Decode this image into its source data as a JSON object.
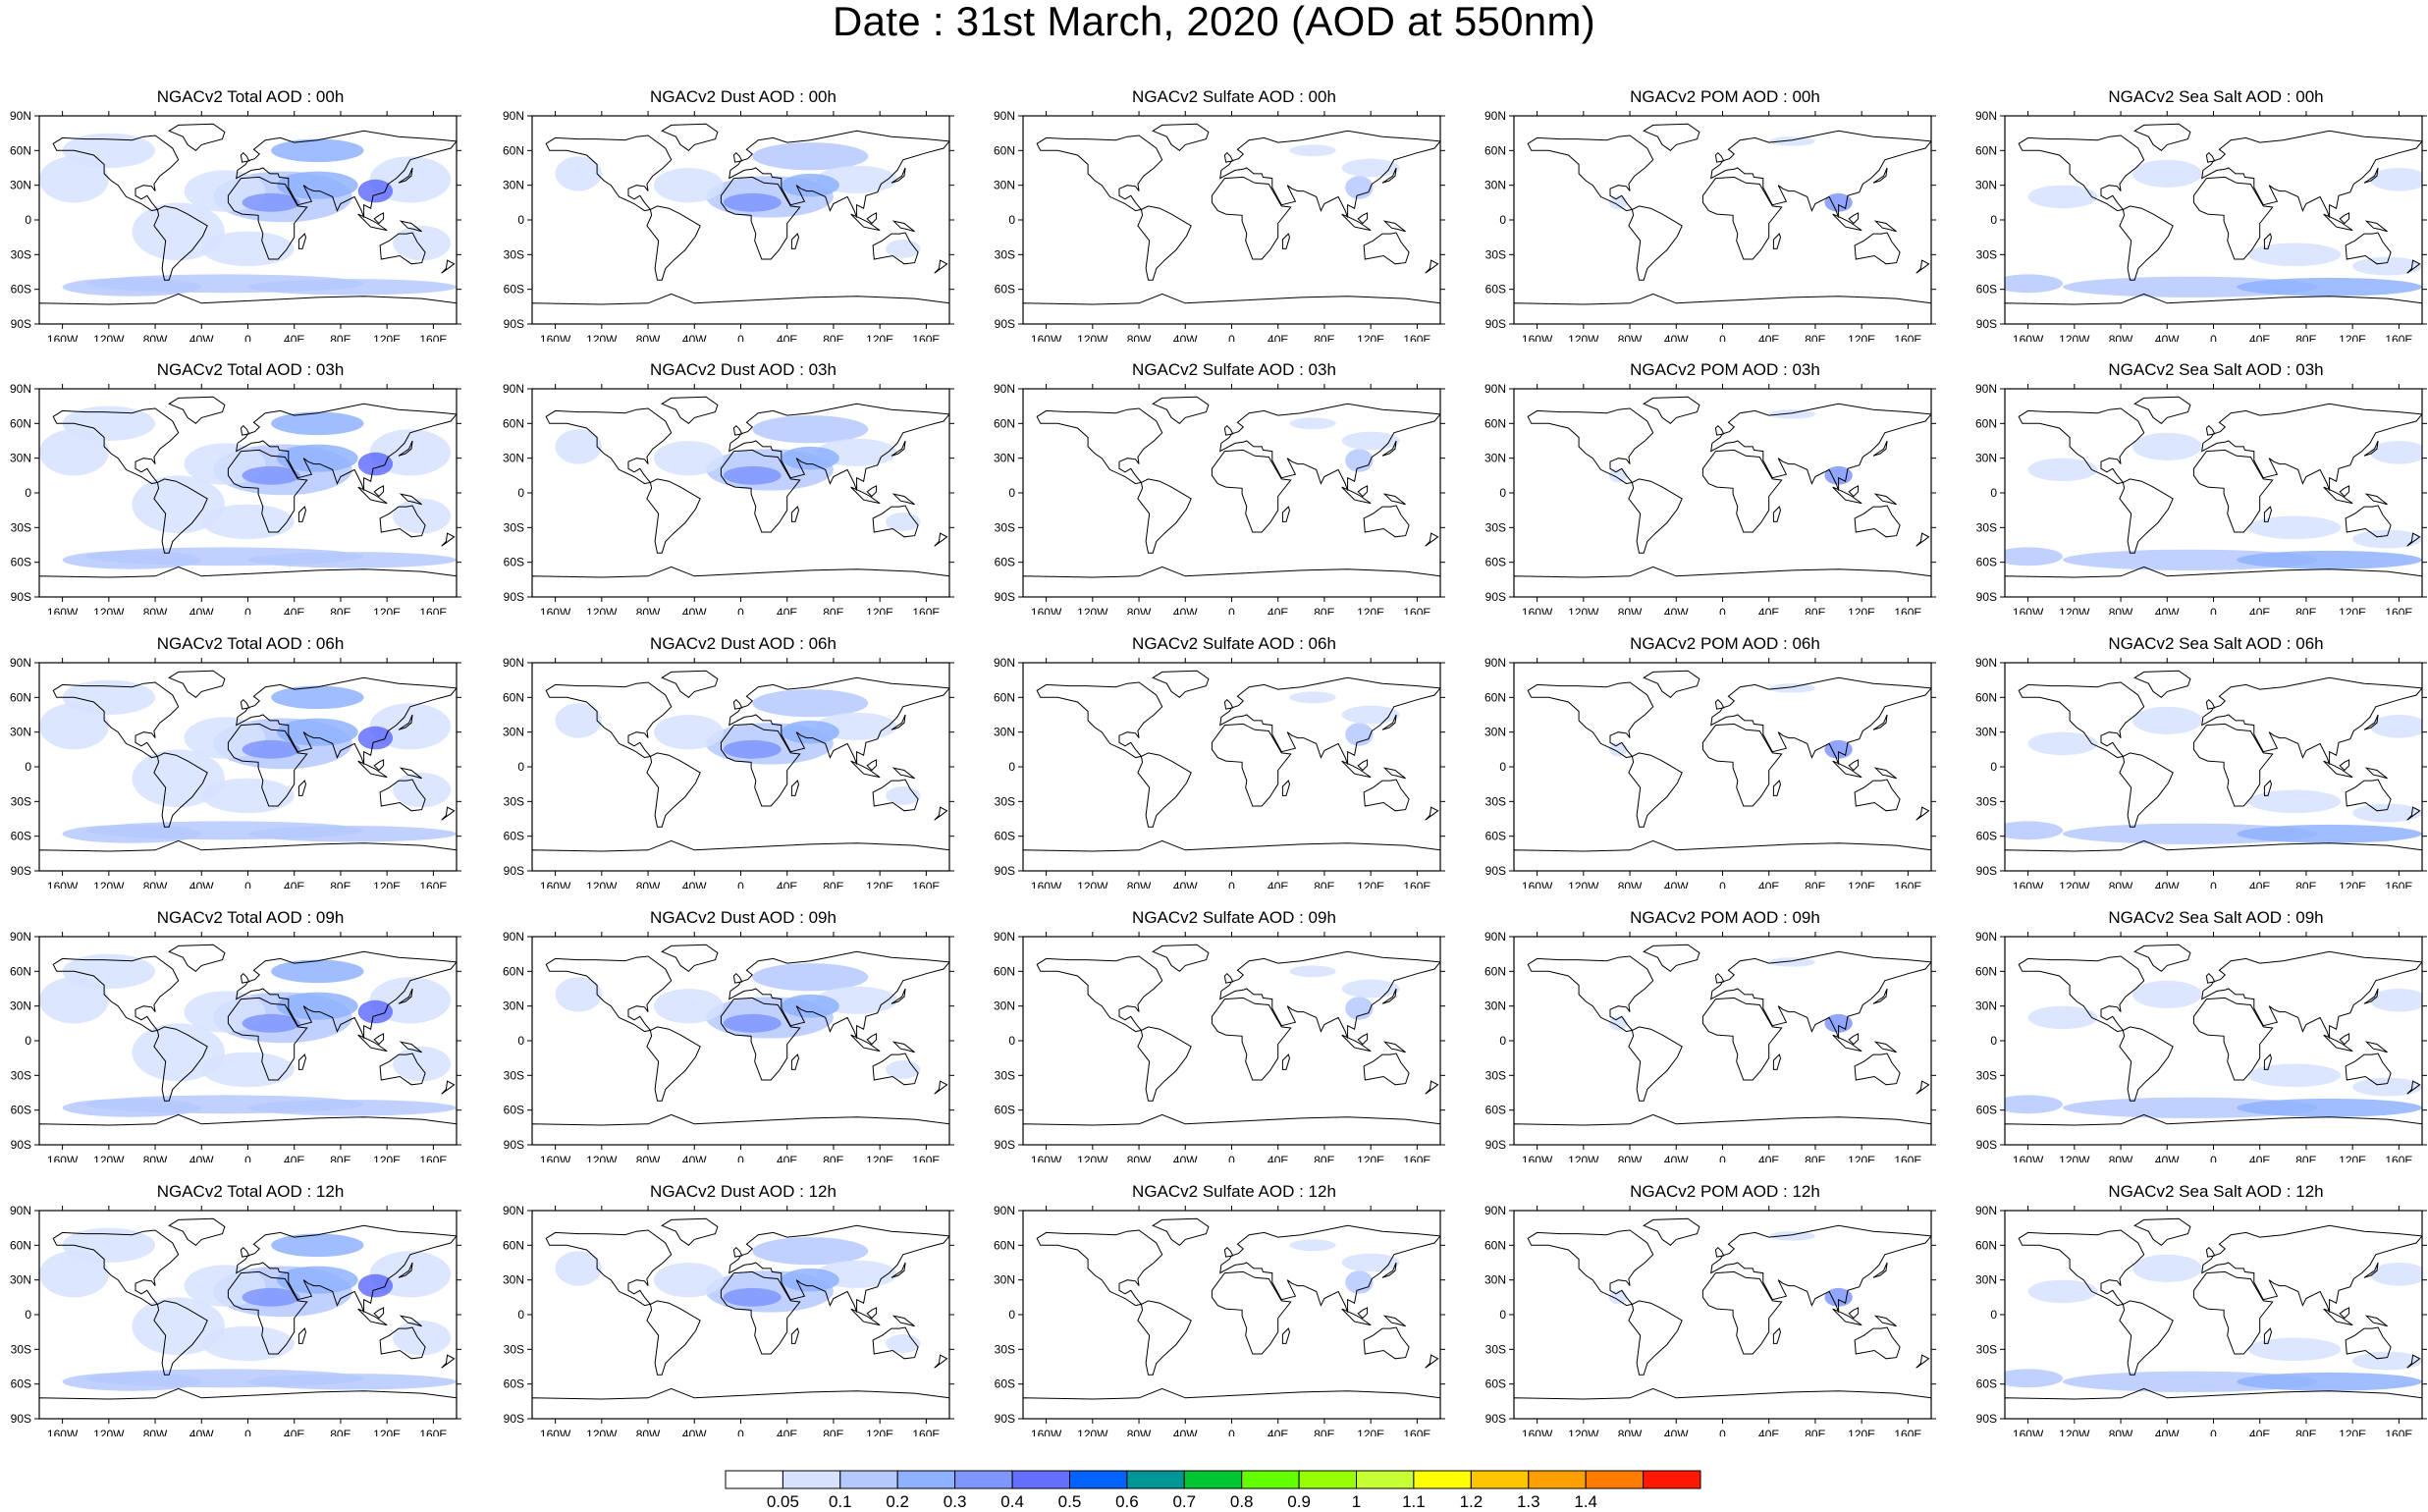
{
  "title": "Date : 31st March, 2020 (AOD at 550nm)",
  "panels": [
    {
      "title": "NGACv2 Total AOD : 00h",
      "species": "total"
    },
    {
      "title": "NGACv2 Dust AOD : 00h",
      "species": "dust"
    },
    {
      "title": "NGACv2 Sulfate AOD : 00h",
      "species": "sulfate"
    },
    {
      "title": "NGACv2 POM AOD : 00h",
      "species": "pom"
    },
    {
      "title": "NGACv2 Sea Salt AOD : 00h",
      "species": "seasalt"
    },
    {
      "title": "NGACv2 Total AOD : 03h",
      "species": "total"
    },
    {
      "title": "NGACv2 Dust AOD : 03h",
      "species": "dust"
    },
    {
      "title": "NGACv2 Sulfate AOD : 03h",
      "species": "sulfate"
    },
    {
      "title": "NGACv2 POM AOD : 03h",
      "species": "pom"
    },
    {
      "title": "NGACv2 Sea Salt AOD : 03h",
      "species": "seasalt"
    },
    {
      "title": "NGACv2 Total AOD : 06h",
      "species": "total"
    },
    {
      "title": "NGACv2 Dust AOD : 06h",
      "species": "dust"
    },
    {
      "title": "NGACv2 Sulfate AOD : 06h",
      "species": "sulfate"
    },
    {
      "title": "NGACv2 POM AOD : 06h",
      "species": "pom"
    },
    {
      "title": "NGACv2 Sea Salt AOD : 06h",
      "species": "seasalt"
    },
    {
      "title": "NGACv2 Total AOD : 09h",
      "species": "total"
    },
    {
      "title": "NGACv2 Dust AOD : 09h",
      "species": "dust"
    },
    {
      "title": "NGACv2 Sulfate AOD : 09h",
      "species": "sulfate"
    },
    {
      "title": "NGACv2 POM AOD : 09h",
      "species": "pom"
    },
    {
      "title": "NGACv2 Sea Salt  AOD : 09h",
      "species": "seasalt"
    },
    {
      "title": "NGACv2 Total AOD  : 12h",
      "species": "total"
    },
    {
      "title": "NGACv2 Dust AOD : 12h",
      "species": "dust"
    },
    {
      "title": "NGACv2 Sulfate AOD : 12h",
      "species": "sulfate"
    },
    {
      "title": "NGACv2 POM  AOD : 12h",
      "species": "pom"
    },
    {
      "title": "NGACv2 Sea Salt  AOD : 12h",
      "species": "seasalt"
    }
  ],
  "lat_labels": [
    "90N",
    "60N",
    "30N",
    "0",
    "30S",
    "60S",
    "90S"
  ],
  "lon_labels": [
    "160W",
    "120W",
    "80W",
    "40W",
    "0",
    "40E",
    "80E",
    "120E",
    "160E"
  ],
  "colorbar": {
    "colors": [
      "#ffffff",
      "#d6e2ff",
      "#b5c9ff",
      "#8eb2ff",
      "#7f96ff",
      "#6370ff",
      "#0063ff",
      "#009696",
      "#00c633",
      "#63ff00",
      "#96ff00",
      "#c6ff33",
      "#ffff00",
      "#ffc600",
      "#ffa000",
      "#ff7c00",
      "#ff1900"
    ],
    "labels": [
      "0.05",
      "0.1",
      "0.2",
      "0.3",
      "0.4",
      "0.5",
      "0.6",
      "0.7",
      "0.8",
      "0.9",
      "1",
      "1.1",
      "1.2",
      "1.3",
      "1.4"
    ]
  }
}
